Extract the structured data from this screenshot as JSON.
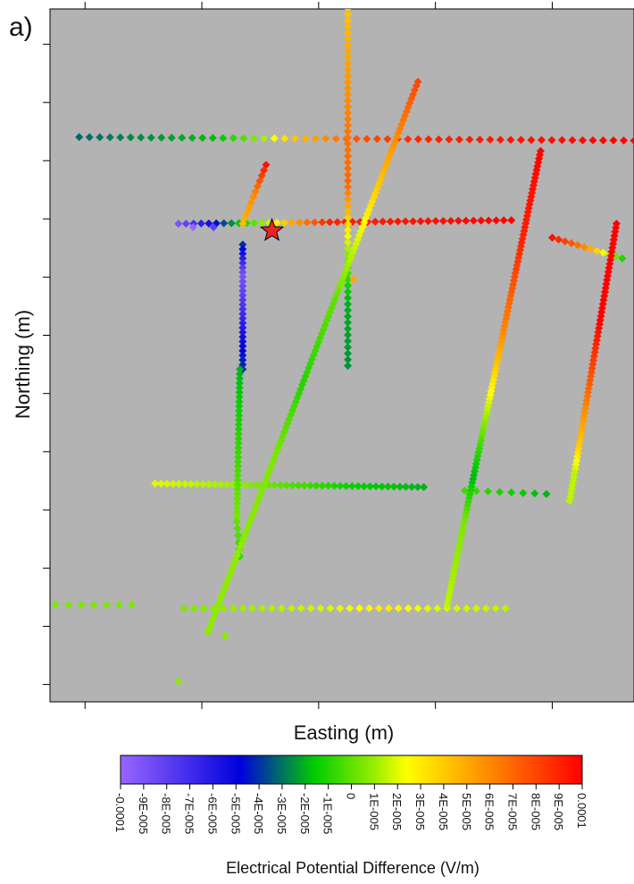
{
  "panel_label": "a)",
  "chart_data": {
    "type": "scatter",
    "title": "",
    "xlabel": "Easting (m)",
    "ylabel": "Northing (m)",
    "xlim": [
      0,
      100
    ],
    "ylim": [
      0,
      100
    ],
    "plot_background": "#b3b3b3",
    "marker": "diamond",
    "colormap": [
      "#9966ff",
      "#0000dd",
      "#00cc00",
      "#99ee00",
      "#ffff00",
      "#ff8800",
      "#ff0000"
    ],
    "colorbar": {
      "title": "Electrical Potential Difference (V/m)",
      "min": -0.0001,
      "max": 0.0001,
      "tick_labels": [
        "-0.0001",
        "-9E-005",
        "-8E-005",
        "-7E-005",
        "-6E-005",
        "-5E-005",
        "-4E-005",
        "-3E-005",
        "-2E-005",
        "-1E-005",
        "0",
        "1E-005",
        "2E-005",
        "3E-005",
        "4E-005",
        "5E-005",
        "6E-005",
        "7E-005",
        "8E-005",
        "9E-005",
        "0.0001"
      ]
    },
    "source_marker": {
      "shape": "star",
      "color": "#ee2222",
      "x": 38,
      "y": 68
    },
    "lines": [
      {
        "x0": 5,
        "y0": 81.5,
        "x1": 100,
        "y1": 81,
        "n": 55,
        "stops": [
          [
            0,
            -3.2e-05
          ],
          [
            0.25,
            -1.8e-05
          ],
          [
            0.33,
            1e-05
          ],
          [
            0.38,
            4e-05
          ],
          [
            0.5,
            7.5e-05
          ],
          [
            0.62,
            9e-05
          ],
          [
            1,
            0.0001
          ]
        ]
      },
      {
        "x0": 22,
        "y0": 69,
        "x1": 79,
        "y1": 69.5,
        "n": 45,
        "stops": [
          [
            0,
            -9e-05
          ],
          [
            0.08,
            -6e-05
          ],
          [
            0.15,
            -3e-05
          ],
          [
            0.28,
            2e-05
          ],
          [
            0.34,
            5e-05
          ],
          [
            0.45,
            9e-05
          ],
          [
            1,
            0.0001
          ]
        ]
      },
      {
        "x0": 86,
        "y0": 67,
        "x1": 98,
        "y1": 64,
        "n": 12,
        "stops": [
          [
            0,
            9.5e-05
          ],
          [
            0.45,
            6e-05
          ],
          [
            0.7,
            3e-05
          ],
          [
            1,
            -1e-05
          ]
        ]
      },
      {
        "x0": 18,
        "y0": 31.5,
        "x1": 64,
        "y1": 31,
        "n": 46,
        "stops": [
          [
            0,
            2e-05
          ],
          [
            0.3,
            1e-05
          ],
          [
            0.55,
            -5e-06
          ],
          [
            0.75,
            -1.5e-05
          ],
          [
            1,
            -2e-05
          ]
        ]
      },
      {
        "x0": 71,
        "y0": 30.5,
        "x1": 85,
        "y1": 30,
        "n": 8,
        "stops": [
          [
            0,
            -5e-06
          ],
          [
            1,
            -2e-05
          ]
        ]
      },
      {
        "x0": 1,
        "y0": 14,
        "x1": 14,
        "y1": 14,
        "n": 7,
        "stops": [
          [
            0,
            5e-06
          ],
          [
            1,
            5e-06
          ]
        ]
      },
      {
        "x0": 23,
        "y0": 13.5,
        "x1": 78,
        "y1": 13.5,
        "n": 34,
        "stops": [
          [
            0,
            5e-06
          ],
          [
            0.5,
            2e-05
          ],
          [
            0.62,
            3.2e-05
          ],
          [
            0.75,
            2e-05
          ],
          [
            1,
            1.5e-05
          ]
        ]
      },
      {
        "x0": 51,
        "y0": 101,
        "x1": 51,
        "y1": 48.5,
        "n": 60,
        "stops": [
          [
            0,
            4e-05
          ],
          [
            0.35,
            6.5e-05
          ],
          [
            0.5,
            7e-05
          ],
          [
            0.62,
            3e-05
          ],
          [
            0.72,
            0
          ],
          [
            0.82,
            -2e-05
          ],
          [
            1,
            -2.5e-05
          ]
        ]
      },
      {
        "x0": 37,
        "y0": 77.5,
        "x1": 33,
        "y1": 69,
        "n": 12,
        "stops": [
          [
            0,
            9.5e-05
          ],
          [
            0.5,
            6e-05
          ],
          [
            1,
            4.5e-05
          ]
        ]
      },
      {
        "x0": 33,
        "y0": 66,
        "x1": 33,
        "y1": 48,
        "n": 28,
        "stops": [
          [
            0,
            -4e-05
          ],
          [
            0.25,
            -9e-05
          ],
          [
            0.55,
            -7e-05
          ],
          [
            0.8,
            -5e-05
          ],
          [
            1,
            -4e-05
          ]
        ]
      },
      {
        "x0": 32.5,
        "y0": 48,
        "x1": 32,
        "y1": 26,
        "n": 34,
        "stops": [
          [
            0,
            -2e-05
          ],
          [
            0.5,
            -8e-06
          ],
          [
            1,
            5e-06
          ]
        ]
      },
      {
        "x0": 32,
        "y0": 26,
        "x1": 32.5,
        "y1": 21,
        "n": 6,
        "stops": [
          [
            0,
            0
          ],
          [
            1,
            -8e-06
          ]
        ]
      },
      {
        "x0": 63,
        "y0": 89.5,
        "x1": 27,
        "y1": 10,
        "n": 130,
        "stops": [
          [
            0,
            8e-05
          ],
          [
            0.12,
            5.5e-05
          ],
          [
            0.28,
            2e-05
          ],
          [
            0.4,
            0
          ],
          [
            0.55,
            -1e-05
          ],
          [
            0.68,
            5e-06
          ],
          [
            0.85,
            8e-06
          ],
          [
            1,
            8e-06
          ]
        ]
      },
      {
        "x0": 84,
        "y0": 79.5,
        "x1": 68,
        "y1": 14,
        "n": 120,
        "stops": [
          [
            0,
            0.0001
          ],
          [
            0.2,
            9e-05
          ],
          [
            0.4,
            6e-05
          ],
          [
            0.55,
            2e-05
          ],
          [
            0.65,
            -5e-06
          ],
          [
            0.72,
            -2e-05
          ],
          [
            0.82,
            5e-06
          ],
          [
            1,
            1.5e-05
          ]
        ]
      },
      {
        "x0": 97,
        "y0": 69,
        "x1": 89,
        "y1": 29,
        "n": 70,
        "stops": [
          [
            0,
            0.0001
          ],
          [
            0.35,
            0.0001
          ],
          [
            0.6,
            7e-05
          ],
          [
            0.8,
            4e-05
          ],
          [
            0.9,
            1.5e-05
          ],
          [
            1,
            1.5e-05
          ]
        ]
      }
    ],
    "isolated_points": [
      {
        "x": 22,
        "y": 3,
        "value": 8e-06
      },
      {
        "x": 24.5,
        "y": 68.5,
        "value": -0.0001
      },
      {
        "x": 28,
        "y": 68.5,
        "value": -8e-05
      },
      {
        "x": 52,
        "y": 61,
        "value": 5e-05
      },
      {
        "x": 30,
        "y": 9.5,
        "value": 8e-06
      }
    ]
  }
}
